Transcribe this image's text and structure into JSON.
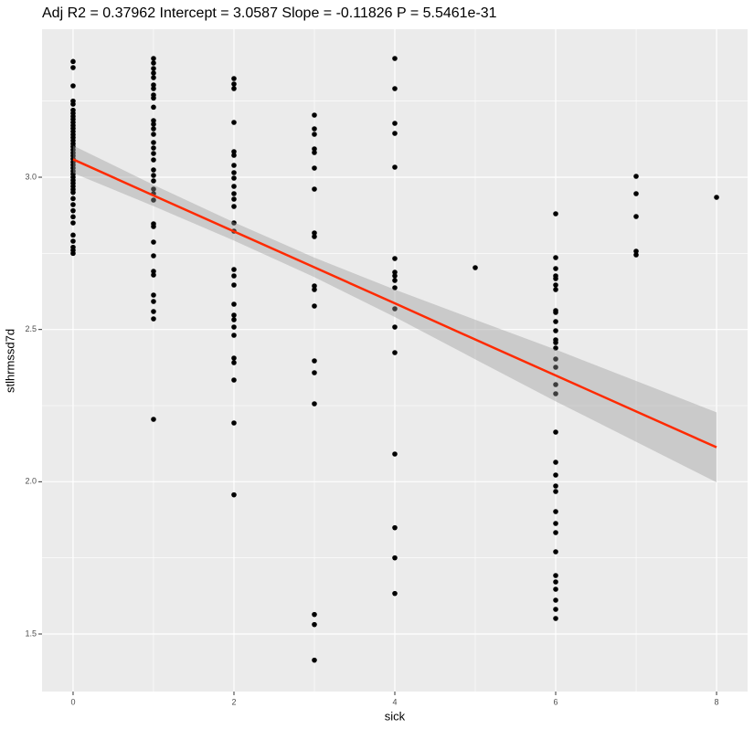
{
  "chart_data": {
    "type": "scatter",
    "title": "Adj R2 =  0.37962 Intercept = 3.0587  Slope = -0.11826  P = 5.5461e-31",
    "x_label": "sick",
    "y_label": "stlhrmssd7d",
    "xlim": [
      -0.386,
      8.386
    ],
    "ylim": [
      1.311,
      3.486
    ],
    "xticks": [
      0,
      2,
      4,
      6,
      8
    ],
    "yticks": [
      1.5,
      {
        "value": 2,
        "label": "2.0"
      },
      2.5,
      {
        "value": 3,
        "label": "3.0"
      }
    ],
    "x_minor_ticks": [
      1,
      3,
      5,
      7
    ],
    "y_minor_ticks": [
      1.75,
      2.25,
      2.75,
      3.25
    ],
    "grid": true,
    "point_color": "#000000",
    "groups": [
      {
        "x": 0,
        "values": [
          3.38,
          3.36,
          3.3,
          3.25,
          3.24,
          3.22,
          3.21,
          3.2,
          3.19,
          3.18,
          3.17,
          3.16,
          3.15,
          3.14,
          3.13,
          3.12,
          3.11,
          3.1,
          3.09,
          3.08,
          3.07,
          3.06,
          3.05,
          3.04,
          3.03,
          3.02,
          3.01,
          3.0,
          2.99,
          2.98,
          2.97,
          2.96,
          2.95,
          2.93,
          2.91,
          2.89,
          2.87,
          2.85,
          2.81,
          2.79,
          2.77,
          2.76,
          2.75
        ]
      },
      {
        "x": 1,
        "values": [
          3.39,
          3.375,
          3.357,
          3.342,
          3.327,
          3.303,
          3.291,
          3.27,
          3.26,
          3.23,
          3.186,
          3.174,
          3.159,
          3.141,
          3.114,
          3.096,
          3.078,
          3.057,
          3.024,
          3.006,
          2.988,
          2.961,
          2.946,
          2.925,
          2.847,
          2.838,
          2.787,
          2.742,
          2.691,
          2.679,
          2.613,
          2.592,
          2.559,
          2.535,
          2.205
        ]
      },
      {
        "x": 2,
        "values": [
          3.324,
          3.306,
          3.291,
          3.18,
          3.084,
          3.072,
          3.039,
          3.015,
          2.997,
          2.97,
          2.946,
          2.928,
          2.904,
          2.85,
          2.823,
          2.697,
          2.676,
          2.646,
          2.583,
          2.547,
          2.532,
          2.508,
          2.481,
          2.406,
          2.391,
          2.334,
          2.193,
          1.957
        ]
      },
      {
        "x": 3,
        "values": [
          3.204,
          3.159,
          3.141,
          3.093,
          3.081,
          3.03,
          2.961,
          2.817,
          2.805,
          2.643,
          2.631,
          2.577,
          2.397,
          2.358,
          2.256,
          1.564,
          1.531,
          1.414
        ]
      },
      {
        "x": 4,
        "values": [
          3.39,
          3.291,
          3.177,
          3.144,
          3.033,
          2.733,
          2.688,
          2.676,
          2.661,
          2.637,
          2.568,
          2.508,
          2.424,
          2.091,
          1.849,
          1.75,
          1.633
        ]
      },
      {
        "x": 5,
        "values": [
          2.703
        ]
      },
      {
        "x": 6,
        "values": [
          2.88,
          2.736,
          2.7,
          2.676,
          2.667,
          2.646,
          2.631,
          2.562,
          2.556,
          2.526,
          2.496,
          2.466,
          2.457,
          2.439,
          2.403,
          2.376,
          2.319,
          2.289,
          2.163,
          2.064,
          2.022,
          1.986,
          1.968,
          1.902,
          1.863,
          1.833,
          1.77,
          1.692,
          1.671,
          1.647,
          1.611,
          1.581,
          1.551
        ]
      },
      {
        "x": 7,
        "values": [
          3.003,
          2.946,
          2.871,
          2.757,
          2.745
        ]
      },
      {
        "x": 8,
        "values": [
          2.934
        ]
      }
    ],
    "fit": {
      "color": "#ff2a00",
      "band_color": "#999999",
      "x": [
        0,
        1,
        2,
        3,
        4,
        5,
        6,
        7,
        8
      ],
      "values": [
        3.0587,
        2.94,
        2.822,
        2.704,
        2.586,
        2.467,
        2.349,
        2.231,
        2.113
      ],
      "lower": [
        3.014,
        2.905,
        2.792,
        2.672,
        2.541,
        2.402,
        2.264,
        2.131,
        1.998
      ],
      "upper": [
        3.104,
        2.975,
        2.852,
        2.736,
        2.631,
        2.532,
        2.434,
        2.331,
        2.228
      ]
    }
  }
}
